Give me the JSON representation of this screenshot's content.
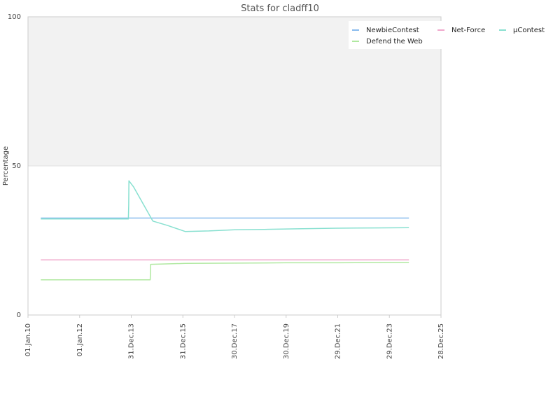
{
  "chart_data": {
    "type": "line",
    "title": "Stats for cladff10",
    "xlabel": "",
    "ylabel": "Percentage",
    "ylim": [
      0,
      100
    ],
    "yticks": [
      "0",
      "50",
      "100"
    ],
    "xlim": [
      "2010-01-01",
      "2025-12-28"
    ],
    "xticks": [
      {
        "date": "2010-01-01",
        "label": "01.Jan.10"
      },
      {
        "date": "2012-01-01",
        "label": "01.Jan.12"
      },
      {
        "date": "2013-12-31",
        "label": "31.Dec.13"
      },
      {
        "date": "2015-12-31",
        "label": "31.Dec.15"
      },
      {
        "date": "2017-12-30",
        "label": "30.Dec.17"
      },
      {
        "date": "2019-12-30",
        "label": "30.Dec.19"
      },
      {
        "date": "2021-12-29",
        "label": "29.Dec.21"
      },
      {
        "date": "2023-12-29",
        "label": "29.Dec.23"
      },
      {
        "date": "2025-12-28",
        "label": "28.Dec.25"
      }
    ],
    "shaded_band": {
      "from": 50,
      "to": 100,
      "color": "#f2f2f2"
    },
    "grid": false,
    "legend": "top-right",
    "series": [
      {
        "name": "NewbieContest",
        "color": "#88bbee",
        "points": [
          {
            "x": "2010-07-01",
            "y": 32.5
          },
          {
            "x": "2024-10-01",
            "y": 32.5
          }
        ]
      },
      {
        "name": "Net-Force",
        "color": "#f0a8cc",
        "points": [
          {
            "x": "2010-07-01",
            "y": 18.5
          },
          {
            "x": "2024-10-01",
            "y": 18.5
          }
        ]
      },
      {
        "name": "µContest",
        "color": "#88e0d0",
        "points": [
          {
            "x": "2010-07-01",
            "y": 32.2
          },
          {
            "x": "2013-11-20",
            "y": 32.2
          },
          {
            "x": "2013-11-25",
            "y": 37.0
          },
          {
            "x": "2013-11-28",
            "y": 45.0
          },
          {
            "x": "2014-02-01",
            "y": 43.0
          },
          {
            "x": "2014-11-01",
            "y": 31.5
          },
          {
            "x": "2015-06-01",
            "y": 30.0
          },
          {
            "x": "2016-02-01",
            "y": 28.0
          },
          {
            "x": "2017-01-01",
            "y": 28.2
          },
          {
            "x": "2018-01-01",
            "y": 28.6
          },
          {
            "x": "2019-03-01",
            "y": 28.7
          },
          {
            "x": "2020-06-01",
            "y": 28.9
          },
          {
            "x": "2021-12-01",
            "y": 29.1
          },
          {
            "x": "2023-06-01",
            "y": 29.2
          },
          {
            "x": "2024-10-01",
            "y": 29.3
          }
        ]
      },
      {
        "name": "Defend the Web",
        "color": "#b0e8a0",
        "points": [
          {
            "x": "2010-07-01",
            "y": 11.8
          },
          {
            "x": "2014-09-25",
            "y": 11.8
          },
          {
            "x": "2014-10-01",
            "y": 17.0
          },
          {
            "x": "2016-02-01",
            "y": 17.3
          },
          {
            "x": "2018-01-01",
            "y": 17.4
          },
          {
            "x": "2020-01-01",
            "y": 17.5
          },
          {
            "x": "2022-01-01",
            "y": 17.5
          },
          {
            "x": "2024-10-01",
            "y": 17.6
          }
        ]
      }
    ]
  }
}
